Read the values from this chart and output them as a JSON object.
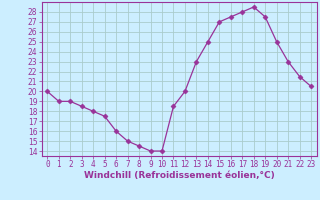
{
  "x": [
    0,
    1,
    2,
    3,
    4,
    5,
    6,
    7,
    8,
    9,
    10,
    11,
    12,
    13,
    14,
    15,
    16,
    17,
    18,
    19,
    20,
    21,
    22,
    23
  ],
  "y": [
    20,
    19,
    19,
    18.5,
    18,
    17.5,
    16,
    15,
    14.5,
    14,
    14,
    18.5,
    20,
    23,
    25,
    27,
    27.5,
    28,
    28.5,
    27.5,
    25,
    23,
    21.5,
    20.5
  ],
  "line_color": "#993399",
  "marker": "D",
  "marker_size": 2.5,
  "bg_color": "#cceeff",
  "grid_color": "#aacccc",
  "xlabel": "Windchill (Refroidissement éolien,°C)",
  "xlim": [
    -0.5,
    23.5
  ],
  "ylim": [
    13.5,
    29
  ],
  "yticks": [
    14,
    15,
    16,
    17,
    18,
    19,
    20,
    21,
    22,
    23,
    24,
    25,
    26,
    27,
    28
  ],
  "xtick_labels": [
    "0",
    "1",
    "2",
    "3",
    "4",
    "5",
    "6",
    "7",
    "8",
    "9",
    "10",
    "11",
    "12",
    "13",
    "14",
    "15",
    "16",
    "17",
    "18",
    "19",
    "20",
    "21",
    "22",
    "23"
  ],
  "tick_color": "#993399",
  "spine_color": "#993399",
  "axis_label_color": "#993399",
  "tick_fontsize": 5.5,
  "xlabel_fontsize": 6.5
}
